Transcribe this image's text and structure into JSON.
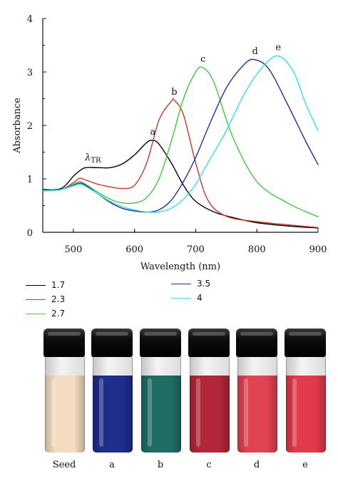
{
  "chart_data": {
    "type": "line",
    "xlabel": "Wavelength (nm)",
    "ylabel": "Absorbance",
    "xlim": [
      450,
      900
    ],
    "ylim": [
      0,
      4
    ],
    "x_ticks": [
      "500",
      "600",
      "700",
      "800",
      "900"
    ],
    "y_ticks": [
      "0",
      "1",
      "2",
      "3",
      "4"
    ],
    "grid": false,
    "series": [
      {
        "name": "1.7",
        "label": "a",
        "color": "#000000",
        "x": [
          450,
          480,
          500,
          510,
          520,
          540,
          560,
          580,
          600,
          620,
          630,
          640,
          660,
          680,
          700,
          730,
          760,
          800,
          850,
          900
        ],
        "y": [
          0.8,
          0.82,
          1.05,
          1.15,
          1.21,
          1.21,
          1.21,
          1.28,
          1.45,
          1.68,
          1.72,
          1.65,
          1.3,
          0.88,
          0.58,
          0.38,
          0.28,
          0.18,
          0.12,
          0.08
        ]
      },
      {
        "name": "2.3",
        "label": "b",
        "color": "#c8362c",
        "x": [
          450,
          480,
          500,
          510,
          520,
          540,
          560,
          580,
          600,
          620,
          640,
          660,
          665,
          680,
          700,
          720,
          750,
          800,
          850,
          900
        ],
        "y": [
          0.78,
          0.8,
          0.93,
          1.01,
          0.98,
          0.9,
          0.85,
          0.82,
          0.88,
          1.3,
          2.1,
          2.45,
          2.47,
          2.2,
          1.3,
          0.6,
          0.3,
          0.2,
          0.14,
          0.09
        ]
      },
      {
        "name": "2.7",
        "label": "c",
        "color": "#3ec83e",
        "x": [
          450,
          480,
          500,
          510,
          520,
          540,
          560,
          580,
          600,
          620,
          640,
          660,
          680,
          700,
          712,
          730,
          760,
          800,
          850,
          900
        ],
        "y": [
          0.78,
          0.8,
          0.9,
          0.95,
          0.9,
          0.75,
          0.62,
          0.55,
          0.55,
          0.65,
          1.0,
          1.7,
          2.5,
          3.0,
          3.08,
          2.8,
          1.8,
          0.95,
          0.55,
          0.29
        ]
      },
      {
        "name": "3.5",
        "label": "d",
        "color": "#2b2b9a",
        "x": [
          450,
          480,
          500,
          510,
          520,
          540,
          560,
          580,
          600,
          620,
          640,
          660,
          680,
          700,
          720,
          750,
          780,
          797,
          820,
          850,
          880,
          900
        ],
        "y": [
          0.78,
          0.8,
          0.88,
          0.92,
          0.88,
          0.72,
          0.56,
          0.45,
          0.4,
          0.38,
          0.42,
          0.6,
          0.95,
          1.4,
          1.95,
          2.7,
          3.15,
          3.23,
          3.05,
          2.4,
          1.7,
          1.27
        ]
      },
      {
        "name": "4",
        "label": "e",
        "color": "#3cdde0",
        "x": [
          450,
          480,
          500,
          510,
          520,
          540,
          560,
          580,
          600,
          620,
          640,
          660,
          680,
          700,
          720,
          750,
          780,
          810,
          835,
          860,
          880,
          900
        ],
        "y": [
          0.78,
          0.8,
          0.87,
          0.9,
          0.86,
          0.72,
          0.58,
          0.48,
          0.42,
          0.38,
          0.38,
          0.45,
          0.62,
          0.9,
          1.3,
          1.9,
          2.6,
          3.1,
          3.3,
          3.0,
          2.4,
          1.9
        ]
      }
    ],
    "annotations": [
      {
        "text_main": "λ",
        "text_sub": "TR",
        "x": 532,
        "y": 1.35
      }
    ]
  },
  "vials": [
    {
      "label": "Seed",
      "liquid": "#f3dcc0"
    },
    {
      "label": "a",
      "liquid": "#1f2d8c"
    },
    {
      "label": "b",
      "liquid": "#1f6e66"
    },
    {
      "label": "c",
      "liquid": "#b3273a"
    },
    {
      "label": "d",
      "liquid": "#e04352"
    },
    {
      "label": "e",
      "liquid": "#e23a4a"
    }
  ]
}
